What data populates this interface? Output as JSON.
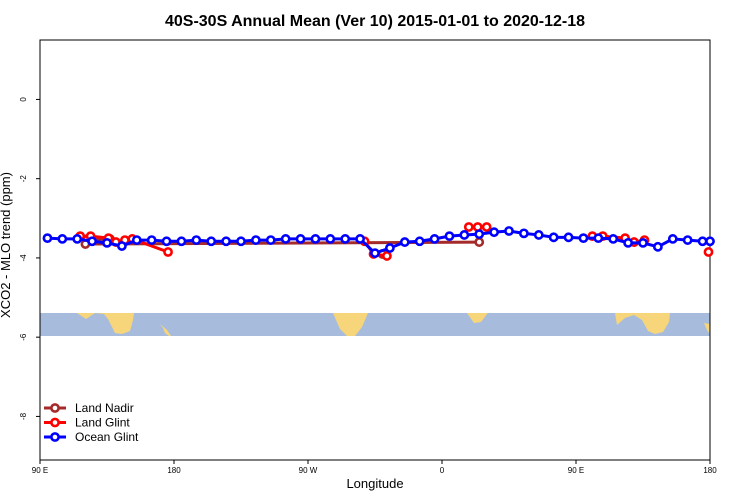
{
  "chart_data": {
    "type": "line",
    "title": "40S-30S Annual Mean (Ver 10)   2015-01-01 to 2020-12-18",
    "xlabel": "Longitude",
    "ylabel": "XCO2 - MLO trend (ppm)",
    "xlim": [
      90,
      540
    ],
    "ylim": [
      -9.1,
      1.5
    ],
    "x_ticks": [
      {
        "value": 90,
        "label": "90 E"
      },
      {
        "value": 180,
        "label": "180"
      },
      {
        "value": 270,
        "label": "90 W"
      },
      {
        "value": 360,
        "label": "0"
      },
      {
        "value": 450,
        "label": "90 E"
      },
      {
        "value": 540,
        "label": "180"
      }
    ],
    "y_ticks": [
      {
        "value": 0,
        "label": "0"
      },
      {
        "value": -2,
        "label": "-2"
      },
      {
        "value": -4,
        "label": "-4"
      },
      {
        "value": -6,
        "label": "-6"
      },
      {
        "value": -8,
        "label": "-8"
      }
    ],
    "grid": false,
    "legend_position": "bottom-left",
    "background_map_band": {
      "y_top": -5.25,
      "y_bottom": -5.8,
      "ocean_color": "#a7bcdd",
      "land_color": "#f7d57a"
    },
    "series": [
      {
        "name": "Land Nadir",
        "color": "#a52a2a",
        "segments": [
          [
            [
              121,
              -3.55
            ],
            [
              137,
              -3.52
            ]
          ],
          [
            [
              320,
              -3.9
            ]
          ],
          [
            [
              120.5,
              -3.65
            ],
            [
              385,
              -3.6
            ]
          ]
        ]
      },
      {
        "name": "Land Glint",
        "color": "#ff0000",
        "segments": [
          [
            [
              117,
              -3.45
            ],
            [
              124,
              -3.45
            ],
            [
              136,
              -3.5
            ],
            [
              141,
              -3.6
            ],
            [
              147,
              -3.55
            ],
            [
              152,
              -3.52
            ],
            [
              176,
              -3.85
            ]
          ],
          [
            [
              308,
              -3.58
            ],
            [
              314,
              -3.9
            ],
            [
              323,
              -3.95
            ]
          ],
          [
            [
              378,
              -3.22
            ],
            [
              384,
              -3.22
            ],
            [
              390,
              -3.22
            ]
          ],
          [
            [
              461,
              -3.45
            ],
            [
              468,
              -3.45
            ],
            [
              483,
              -3.5
            ],
            [
              489,
              -3.6
            ],
            [
              496,
              -3.55
            ]
          ],
          [
            [
              539,
              -3.85
            ]
          ]
        ]
      },
      {
        "name": "Ocean Glint",
        "color": "#0000ff",
        "values": [
          [
            95,
            -3.5
          ],
          [
            105,
            -3.52
          ],
          [
            115,
            -3.52
          ],
          [
            125,
            -3.58
          ],
          [
            135,
            -3.62
          ],
          [
            145,
            -3.7
          ],
          [
            155,
            -3.55
          ],
          [
            165,
            -3.55
          ],
          [
            175,
            -3.58
          ],
          [
            185,
            -3.58
          ],
          [
            195,
            -3.55
          ],
          [
            205,
            -3.58
          ],
          [
            215,
            -3.58
          ],
          [
            225,
            -3.58
          ],
          [
            235,
            -3.55
          ],
          [
            245,
            -3.55
          ],
          [
            255,
            -3.52
          ],
          [
            265,
            -3.52
          ],
          [
            275,
            -3.52
          ],
          [
            285,
            -3.52
          ],
          [
            295,
            -3.52
          ],
          [
            305,
            -3.52
          ],
          [
            315,
            -3.88
          ],
          [
            325,
            -3.75
          ],
          [
            335,
            -3.6
          ],
          [
            345,
            -3.58
          ],
          [
            355,
            -3.52
          ],
          [
            365,
            -3.45
          ],
          [
            375,
            -3.42
          ],
          [
            385,
            -3.4
          ],
          [
            395,
            -3.35
          ],
          [
            405,
            -3.32
          ],
          [
            415,
            -3.38
          ],
          [
            425,
            -3.42
          ],
          [
            435,
            -3.48
          ],
          [
            445,
            -3.48
          ],
          [
            455,
            -3.5
          ],
          [
            465,
            -3.5
          ],
          [
            475,
            -3.52
          ],
          [
            485,
            -3.62
          ],
          [
            495,
            -3.62
          ],
          [
            505,
            -3.72
          ],
          [
            515,
            -3.52
          ],
          [
            525,
            -3.55
          ],
          [
            535,
            -3.58
          ],
          [
            540,
            -3.58
          ]
        ]
      }
    ]
  }
}
